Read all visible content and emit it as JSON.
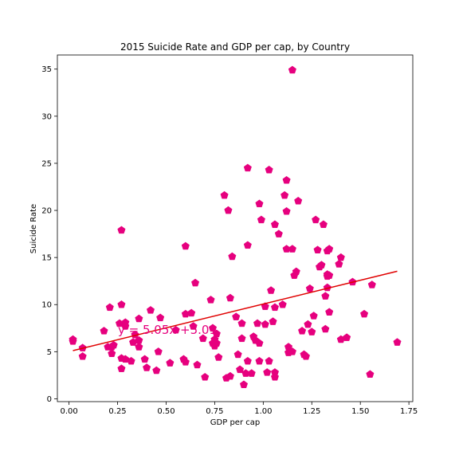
{
  "chart_data": {
    "type": "scatter",
    "title": "2015 Suicide Rate and GDP per cap, by Country",
    "xlabel": "GDP per cap",
    "ylabel": "Suicide Rate",
    "xlim": [
      -0.06,
      1.77
    ],
    "ylim": [
      -0.3,
      36.5
    ],
    "x_ticks": [
      "0.00",
      "0.25",
      "0.50",
      "0.75",
      "1.00",
      "1.25",
      "1.50",
      "1.75"
    ],
    "x_tick_values": [
      0,
      0.25,
      0.5,
      0.75,
      1.0,
      1.25,
      1.5,
      1.75
    ],
    "y_ticks": [
      "0",
      "5",
      "10",
      "15",
      "20",
      "25",
      "30",
      "35"
    ],
    "y_tick_values": [
      0,
      5,
      10,
      15,
      20,
      25,
      30,
      35
    ],
    "grid": false,
    "marker": "pentagon",
    "point_color": "#e6007e",
    "line_color": "#e00000",
    "annotation_color": "#e6007e",
    "annotation": "y = 5.05x +5.01",
    "regression": {
      "slope": 5.05,
      "intercept": 5.01,
      "x_range": [
        0.02,
        1.69
      ]
    },
    "points": [
      [
        0.02,
        6.3
      ],
      [
        0.02,
        6.1
      ],
      [
        0.07,
        5.4
      ],
      [
        0.07,
        4.5
      ],
      [
        0.18,
        7.2
      ],
      [
        0.2,
        5.5
      ],
      [
        0.21,
        9.7
      ],
      [
        0.22,
        5.5
      ],
      [
        0.22,
        4.8
      ],
      [
        0.23,
        5.7
      ],
      [
        0.26,
        8.0
      ],
      [
        0.27,
        10.0
      ],
      [
        0.27,
        17.9
      ],
      [
        0.27,
        4.3
      ],
      [
        0.27,
        3.2
      ],
      [
        0.29,
        4.2
      ],
      [
        0.29,
        8.1
      ],
      [
        0.29,
        7.7
      ],
      [
        0.32,
        4.0
      ],
      [
        0.33,
        6.0
      ],
      [
        0.34,
        6.8
      ],
      [
        0.36,
        8.5
      ],
      [
        0.36,
        6.2
      ],
      [
        0.36,
        5.5
      ],
      [
        0.39,
        4.2
      ],
      [
        0.4,
        3.3
      ],
      [
        0.42,
        9.4
      ],
      [
        0.45,
        3.0
      ],
      [
        0.46,
        5.0
      ],
      [
        0.47,
        8.6
      ],
      [
        0.52,
        3.8
      ],
      [
        0.55,
        7.3
      ],
      [
        0.59,
        4.2
      ],
      [
        0.6,
        16.2
      ],
      [
        0.6,
        3.9
      ],
      [
        0.6,
        9.0
      ],
      [
        0.63,
        9.1
      ],
      [
        0.64,
        7.7
      ],
      [
        0.65,
        12.3
      ],
      [
        0.66,
        3.6
      ],
      [
        0.69,
        6.4
      ],
      [
        0.7,
        2.3
      ],
      [
        0.73,
        10.5
      ],
      [
        0.74,
        5.9
      ],
      [
        0.74,
        7.5
      ],
      [
        0.75,
        5.6
      ],
      [
        0.75,
        6.3
      ],
      [
        0.76,
        6.9
      ],
      [
        0.76,
        5.9
      ],
      [
        0.77,
        4.4
      ],
      [
        0.8,
        21.6
      ],
      [
        0.81,
        2.2
      ],
      [
        0.82,
        20.0
      ],
      [
        0.83,
        2.4
      ],
      [
        0.83,
        10.7
      ],
      [
        0.84,
        15.1
      ],
      [
        0.86,
        8.7
      ],
      [
        0.87,
        4.7
      ],
      [
        0.88,
        3.1
      ],
      [
        0.89,
        8.0
      ],
      [
        0.89,
        6.4
      ],
      [
        0.9,
        1.5
      ],
      [
        0.91,
        2.7
      ],
      [
        0.92,
        4.0
      ],
      [
        0.92,
        24.5
      ],
      [
        0.92,
        16.3
      ],
      [
        0.94,
        2.7
      ],
      [
        0.95,
        6.6
      ],
      [
        0.96,
        6.2
      ],
      [
        0.97,
        8.0
      ],
      [
        0.98,
        20.7
      ],
      [
        0.98,
        5.9
      ],
      [
        0.98,
        4.0
      ],
      [
        0.99,
        19.0
      ],
      [
        1.01,
        7.9
      ],
      [
        1.01,
        9.8
      ],
      [
        1.02,
        2.8
      ],
      [
        1.03,
        24.3
      ],
      [
        1.03,
        4.0
      ],
      [
        1.04,
        11.5
      ],
      [
        1.05,
        8.2
      ],
      [
        1.06,
        18.5
      ],
      [
        1.06,
        9.7
      ],
      [
        1.06,
        2.8
      ],
      [
        1.06,
        2.3
      ],
      [
        1.08,
        17.5
      ],
      [
        1.1,
        10.0
      ],
      [
        1.11,
        21.6
      ],
      [
        1.12,
        19.9
      ],
      [
        1.12,
        23.2
      ],
      [
        1.12,
        15.9
      ],
      [
        1.13,
        4.9
      ],
      [
        1.13,
        5.5
      ],
      [
        1.15,
        34.9
      ],
      [
        1.15,
        15.9
      ],
      [
        1.15,
        5.0
      ],
      [
        1.16,
        13.1
      ],
      [
        1.17,
        13.5
      ],
      [
        1.18,
        21.0
      ],
      [
        1.2,
        7.2
      ],
      [
        1.21,
        4.7
      ],
      [
        1.22,
        4.5
      ],
      [
        1.23,
        7.9
      ],
      [
        1.24,
        11.7
      ],
      [
        1.25,
        7.1
      ],
      [
        1.26,
        8.8
      ],
      [
        1.27,
        19.0
      ],
      [
        1.28,
        15.8
      ],
      [
        1.29,
        14.0
      ],
      [
        1.3,
        14.2
      ],
      [
        1.31,
        18.5
      ],
      [
        1.32,
        7.4
      ],
      [
        1.32,
        10.9
      ],
      [
        1.33,
        13.0
      ],
      [
        1.33,
        13.2
      ],
      [
        1.33,
        15.7
      ],
      [
        1.33,
        11.8
      ],
      [
        1.34,
        15.9
      ],
      [
        1.34,
        9.2
      ],
      [
        1.34,
        13.1
      ],
      [
        1.39,
        14.3
      ],
      [
        1.4,
        15.0
      ],
      [
        1.4,
        6.3
      ],
      [
        1.43,
        6.5
      ],
      [
        1.46,
        12.4
      ],
      [
        1.52,
        9.0
      ],
      [
        1.55,
        2.6
      ],
      [
        1.56,
        12.1
      ],
      [
        1.69,
        6.0
      ]
    ]
  }
}
